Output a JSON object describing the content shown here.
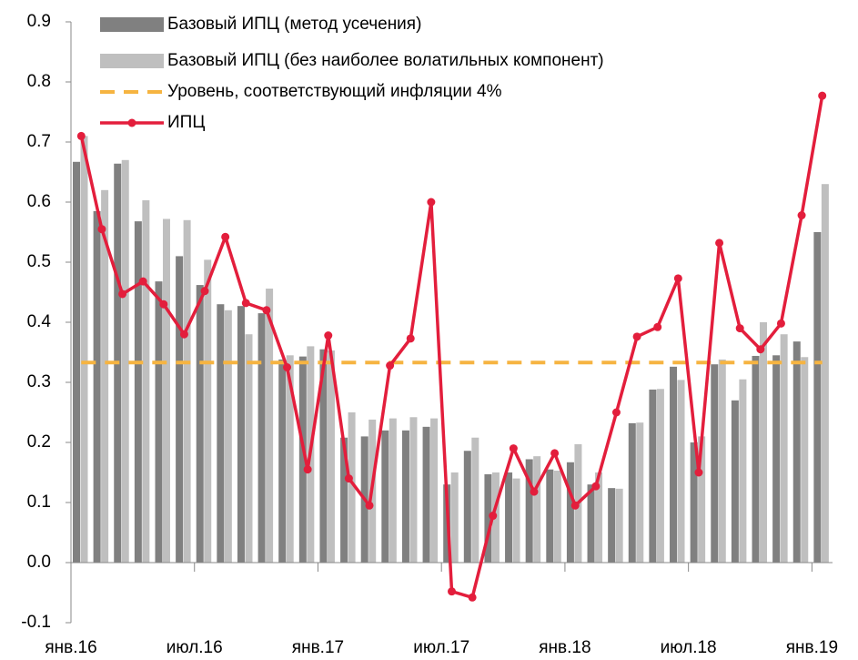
{
  "chart_data": {
    "type": "bar",
    "categories": [
      "янв.16",
      null,
      null,
      null,
      null,
      null,
      "июл.16",
      null,
      null,
      null,
      null,
      null,
      "янв.17",
      null,
      null,
      null,
      null,
      null,
      "июл.17",
      null,
      null,
      null,
      null,
      null,
      "янв.18",
      null,
      null,
      null,
      null,
      null,
      "июл.18",
      null,
      null,
      null,
      null,
      null,
      "янв.19"
    ],
    "series": [
      {
        "name": "Базовый ИПЦ (метод усечения)",
        "color": "#808080",
        "kind": "bar",
        "values": [
          0.667,
          0.585,
          0.664,
          0.568,
          0.468,
          0.51,
          0.462,
          0.43,
          0.427,
          0.415,
          0.338,
          0.343,
          0.355,
          0.208,
          0.21,
          0.22,
          0.22,
          0.226,
          0.13,
          0.186,
          0.147,
          0.15,
          0.172,
          0.155,
          0.167,
          0.13,
          0.124,
          0.232,
          0.288,
          0.326,
          0.2,
          0.33,
          0.27,
          0.344,
          0.345,
          0.368,
          0.55
        ]
      },
      {
        "name": "Базовый ИПЦ (без наиболее волатильных компонент)",
        "color": "#bfbfbf",
        "kind": "bar",
        "values": [
          0.71,
          0.62,
          0.67,
          0.603,
          0.572,
          0.57,
          0.504,
          0.42,
          0.38,
          0.456,
          0.345,
          0.36,
          0.353,
          0.25,
          0.238,
          0.24,
          0.242,
          0.24,
          0.15,
          0.208,
          0.15,
          0.14,
          0.177,
          0.153,
          0.197,
          0.15,
          0.123,
          0.233,
          0.289,
          0.304,
          0.21,
          0.338,
          0.305,
          0.4,
          0.38,
          0.342,
          0.63
        ]
      },
      {
        "name": "Уровень, соответствующий инфляции 4%",
        "color": "#f6b441",
        "kind": "reference",
        "value": 0.333
      },
      {
        "name": "ИПЦ",
        "color": "#e31e3c",
        "kind": "line",
        "values": [
          0.71,
          0.555,
          0.447,
          0.468,
          0.43,
          0.38,
          0.452,
          0.542,
          0.432,
          0.42,
          0.325,
          0.155,
          0.378,
          0.14,
          0.095,
          0.328,
          0.373,
          0.6,
          -0.048,
          -0.058,
          0.078,
          0.19,
          0.118,
          0.182,
          0.095,
          0.127,
          0.25,
          0.376,
          0.392,
          0.473,
          0.15,
          0.532,
          0.39,
          0.355,
          0.398,
          0.578,
          0.777
        ]
      }
    ],
    "ylim": [
      -0.1,
      0.9
    ],
    "yticks": [
      -0.1,
      {
        "value": 0,
        "label": "0.0"
      },
      0.1,
      0.2,
      0.3,
      0.4,
      0.5,
      0.6,
      0.7,
      0.8,
      0.9
    ],
    "legend": "top-left"
  }
}
